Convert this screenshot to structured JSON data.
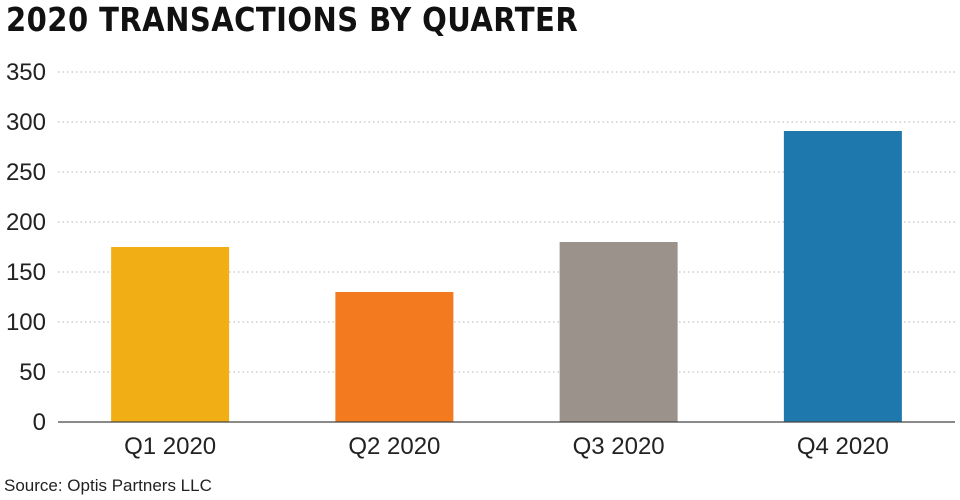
{
  "chart_data": {
    "type": "bar",
    "title": "2020 TRANSACTIONS BY QUARTER",
    "categories": [
      "Q1 2020",
      "Q2 2020",
      "Q3 2020",
      "Q4 2020"
    ],
    "values": [
      175,
      130,
      180,
      291
    ],
    "colors": [
      "#f2ae15",
      "#f47a20",
      "#9a928b",
      "#1f78ad"
    ],
    "ylim": [
      0,
      350
    ],
    "yticks": [
      "0",
      "50",
      "100",
      "150",
      "200",
      "250",
      "300",
      "350"
    ],
    "grid": true,
    "xlabel": "",
    "ylabel": ""
  },
  "source": "Source: Optis Partners LLC"
}
